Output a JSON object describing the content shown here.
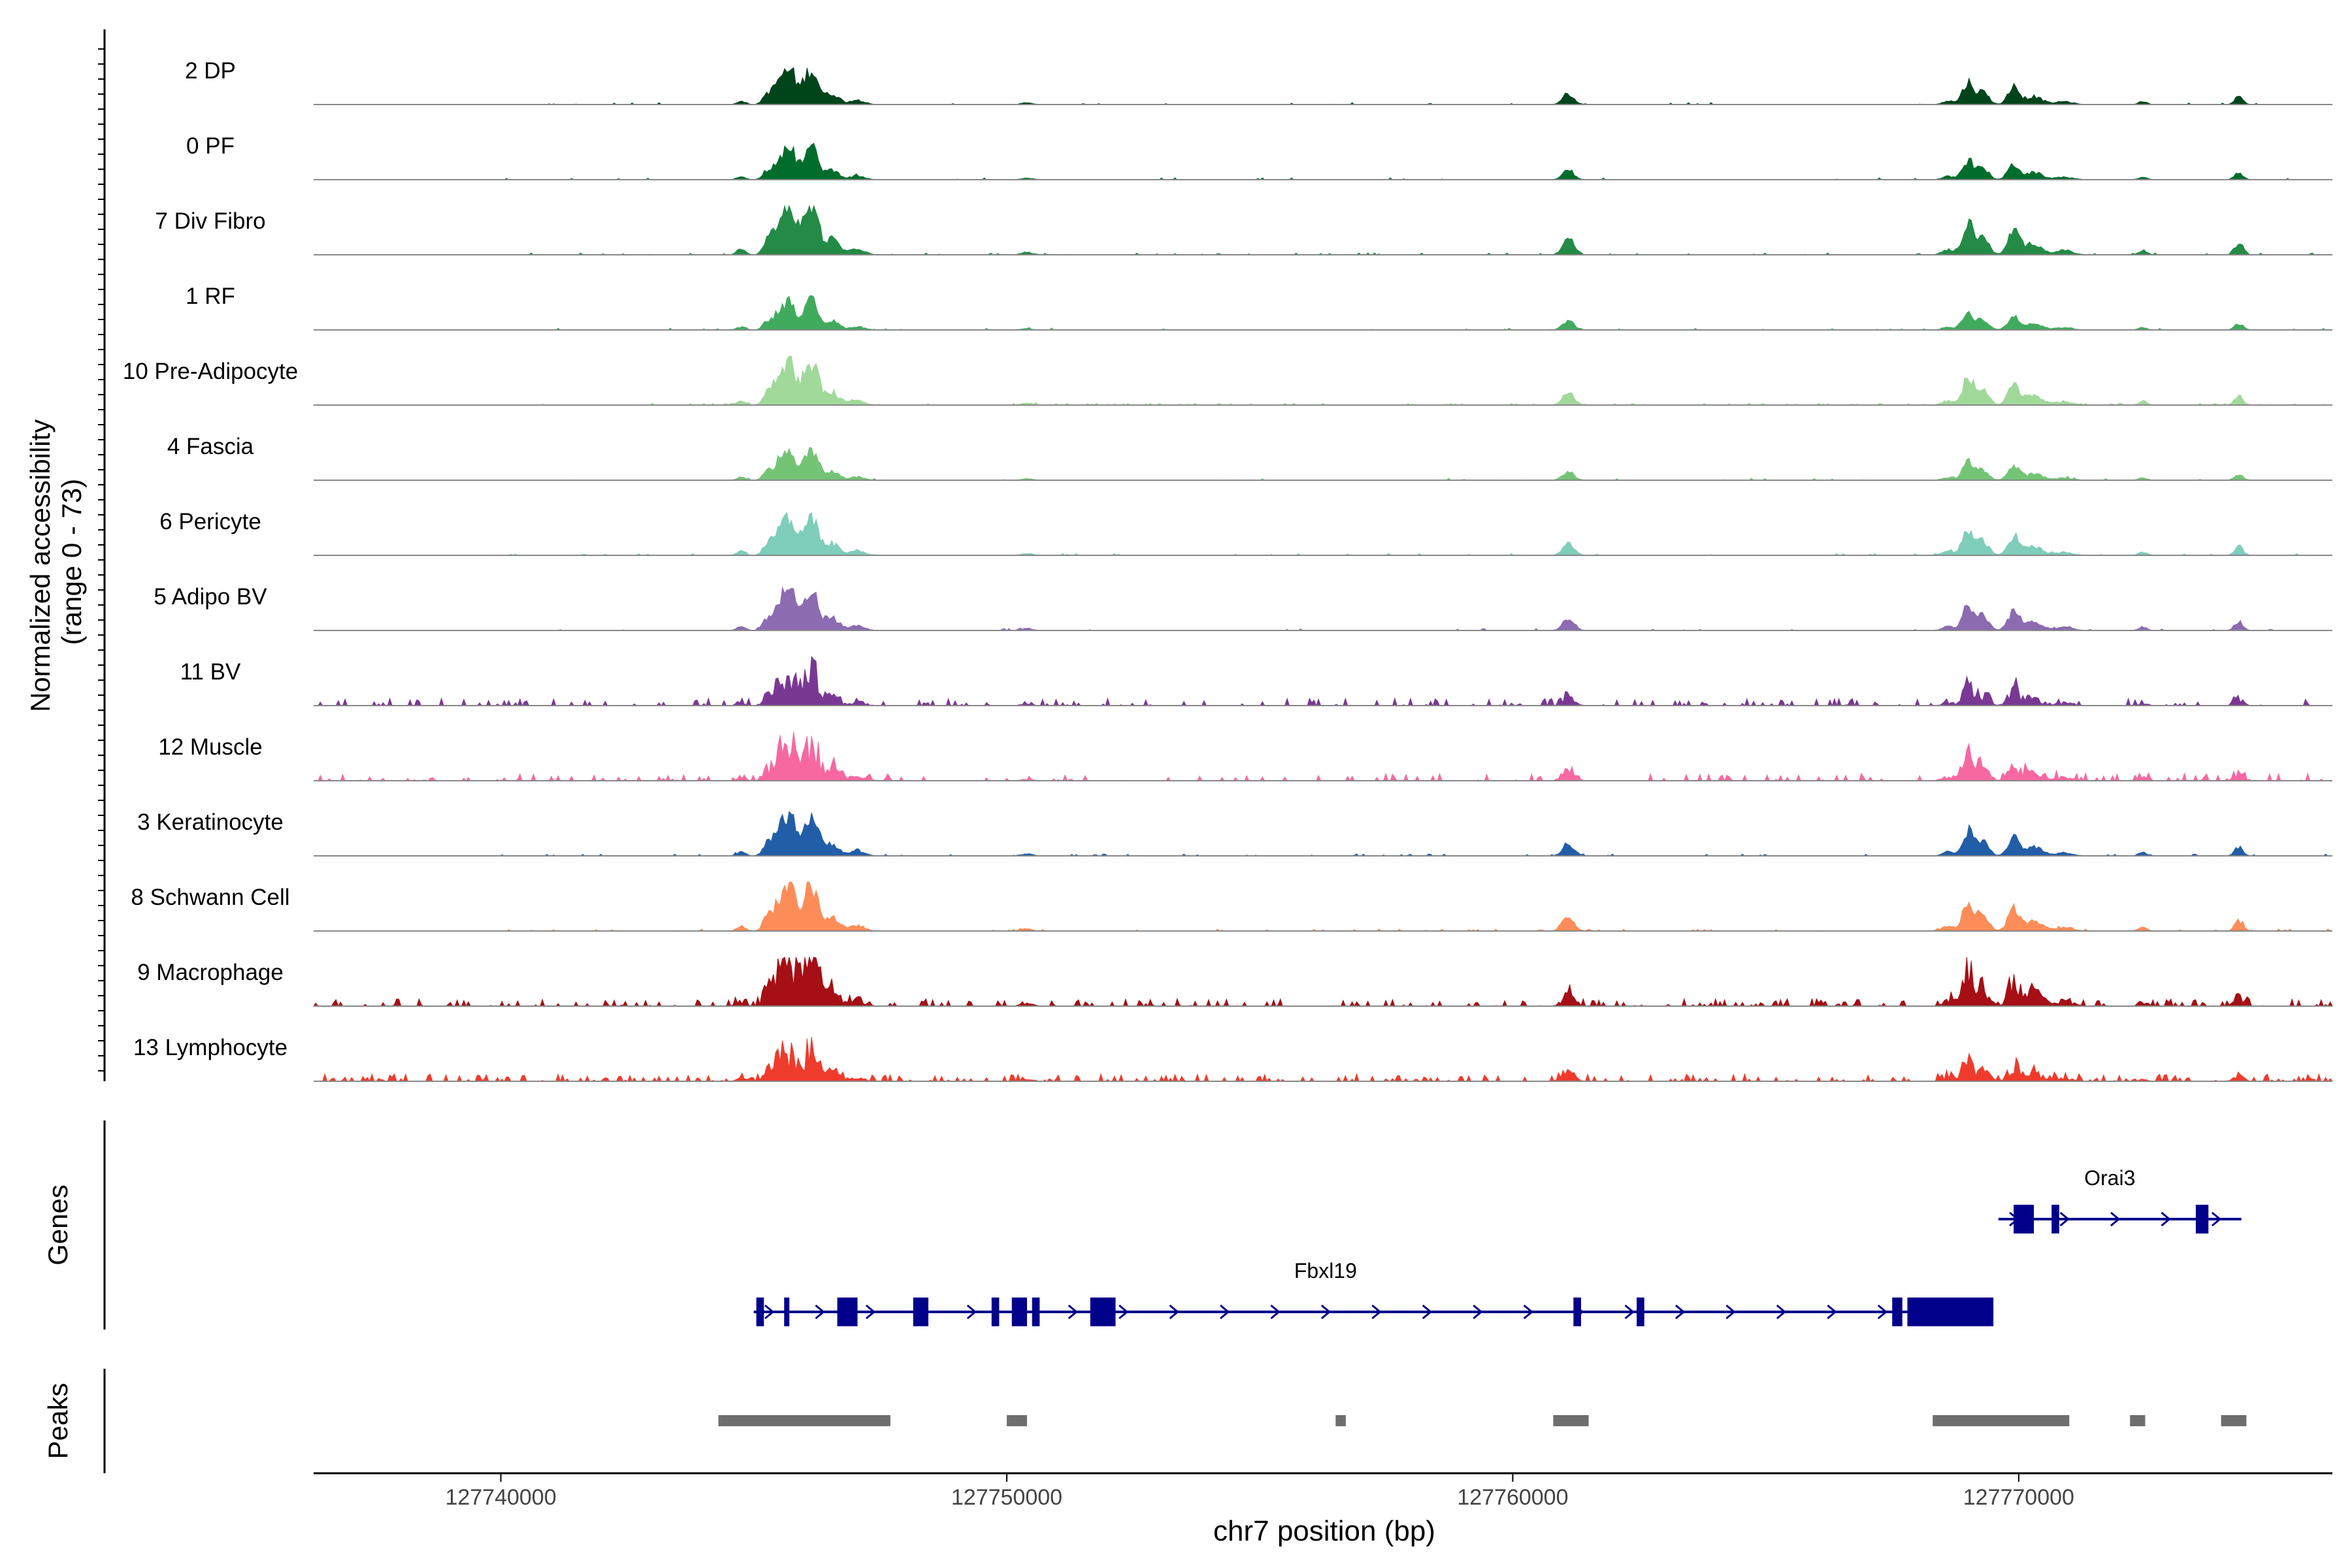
{
  "chart_data": {
    "type": "area",
    "title": "",
    "ylabel_line1": "Normalized accessibility",
    "ylabel_line2": "(range 0 - 73)",
    "ylim": [
      0,
      73
    ],
    "xlabel": "chr7 position (bp)",
    "xlim": [
      127736300,
      127776200
    ],
    "xticks": [
      {
        "value": 127740000,
        "label": "127740000"
      },
      {
        "value": 127750000,
        "label": "127750000"
      },
      {
        "value": 127760000,
        "label": "127760000"
      },
      {
        "value": 127770000,
        "label": "127770000"
      }
    ],
    "tracks": [
      {
        "name": "2 DP",
        "color": "#00441b",
        "scale": 0.62,
        "noise": 0.05,
        "sparse": false
      },
      {
        "name": "0 PF",
        "color": "#006d2c",
        "scale": 0.55,
        "noise": 0.05,
        "sparse": false
      },
      {
        "name": "7 Div Fibro",
        "color": "#238b45",
        "scale": 0.9,
        "noise": 0.08,
        "sparse": false
      },
      {
        "name": "1 RF",
        "color": "#41ab5d",
        "scale": 0.5,
        "noise": 0.05,
        "sparse": false
      },
      {
        "name": "10 Pre-Adipocyte",
        "color": "#a1d99b",
        "scale": 0.75,
        "noise": 0.16,
        "sparse": false
      },
      {
        "name": "4 Fascia",
        "color": "#74c476",
        "scale": 0.5,
        "noise": 0.05,
        "sparse": false
      },
      {
        "name": "6 Pericyte",
        "color": "#7fcdbb",
        "scale": 0.7,
        "noise": 0.06,
        "sparse": false
      },
      {
        "name": "5 Adipo BV",
        "color": "#8c6bb1",
        "scale": 0.72,
        "noise": 0.06,
        "sparse": false
      },
      {
        "name": "11 BV",
        "color": "#7a3895",
        "scale": 0.55,
        "noise": 0.2,
        "sparse": true
      },
      {
        "name": "12 Muscle",
        "color": "#f768a1",
        "scale": 0.68,
        "noise": 0.18,
        "sparse": true
      },
      {
        "name": "3 Keratinocyte",
        "color": "#225ea8",
        "scale": 0.7,
        "noise": 0.12,
        "sparse": false
      },
      {
        "name": "8 Schwann Cell",
        "color": "#fc8d59",
        "scale": 0.8,
        "noise": 0.1,
        "sparse": false
      },
      {
        "name": "9 Macrophage",
        "color": "#a50f15",
        "scale": 0.95,
        "noise": 0.22,
        "sparse": true
      },
      {
        "name": "13 Lymphocyte",
        "color": "#ef3b2c",
        "scale": 0.55,
        "noise": 0.3,
        "sparse": true
      }
    ],
    "peak_profile": [
      {
        "start": 127744600,
        "end": 127744900,
        "height": 0.12
      },
      {
        "start": 127745100,
        "end": 127745400,
        "height": 0.28
      },
      {
        "start": 127745300,
        "end": 127745800,
        "height": 0.92
      },
      {
        "start": 127745600,
        "end": 127745900,
        "height": 0.7
      },
      {
        "start": 127745800,
        "end": 127746300,
        "height": 0.78
      },
      {
        "start": 127746000,
        "end": 127746400,
        "height": 0.6
      },
      {
        "start": 127746300,
        "end": 127746800,
        "height": 0.35
      },
      {
        "start": 127746800,
        "end": 127747300,
        "height": 0.14
      },
      {
        "start": 127750200,
        "end": 127750600,
        "height": 0.06
      },
      {
        "start": 127760900,
        "end": 127761300,
        "height": 0.36
      },
      {
        "start": 127768400,
        "end": 127768800,
        "height": 0.12
      },
      {
        "start": 127768800,
        "end": 127769200,
        "height": 0.72
      },
      {
        "start": 127769100,
        "end": 127769500,
        "height": 0.4
      },
      {
        "start": 127769700,
        "end": 127770100,
        "height": 0.55
      },
      {
        "start": 127770000,
        "end": 127770600,
        "height": 0.26
      },
      {
        "start": 127770600,
        "end": 127771200,
        "height": 0.1
      },
      {
        "start": 127772300,
        "end": 127772600,
        "height": 0.1
      },
      {
        "start": 127774200,
        "end": 127774500,
        "height": 0.26
      }
    ],
    "genes": [
      {
        "name": "Fbxl19",
        "strand": "+",
        "row": 2,
        "start": 127745000,
        "end": 127769500,
        "exons": [
          [
            127745050,
            127745200
          ],
          [
            127745600,
            127745700
          ],
          [
            127746650,
            127747050
          ],
          [
            127748150,
            127748450
          ],
          [
            127749700,
            127749850
          ],
          [
            127750100,
            127750400
          ],
          [
            127750500,
            127750650
          ],
          [
            127751650,
            127752150
          ],
          [
            127761200,
            127761350
          ],
          [
            127762450,
            127762600
          ],
          [
            127767500,
            127767700
          ],
          [
            127767800,
            127769500
          ]
        ],
        "label_x": 127756300
      },
      {
        "name": "Orai3",
        "strand": "+",
        "row": 1,
        "start": 127769600,
        "end": 127774400,
        "exons": [
          [
            127769900,
            127770300
          ],
          [
            127770650,
            127770800
          ],
          [
            127773500,
            127773750
          ]
        ],
        "label_x": 127771800
      }
    ],
    "peaks": [
      [
        127744300,
        127747700
      ],
      [
        127750000,
        127750400
      ],
      [
        127756500,
        127756700
      ],
      [
        127760800,
        127761500
      ],
      [
        127768300,
        127771000
      ],
      [
        127772200,
        127772500
      ],
      [
        127774000,
        127774500
      ]
    ],
    "panels": {
      "genes": "Genes",
      "peaks": "Peaks"
    }
  }
}
